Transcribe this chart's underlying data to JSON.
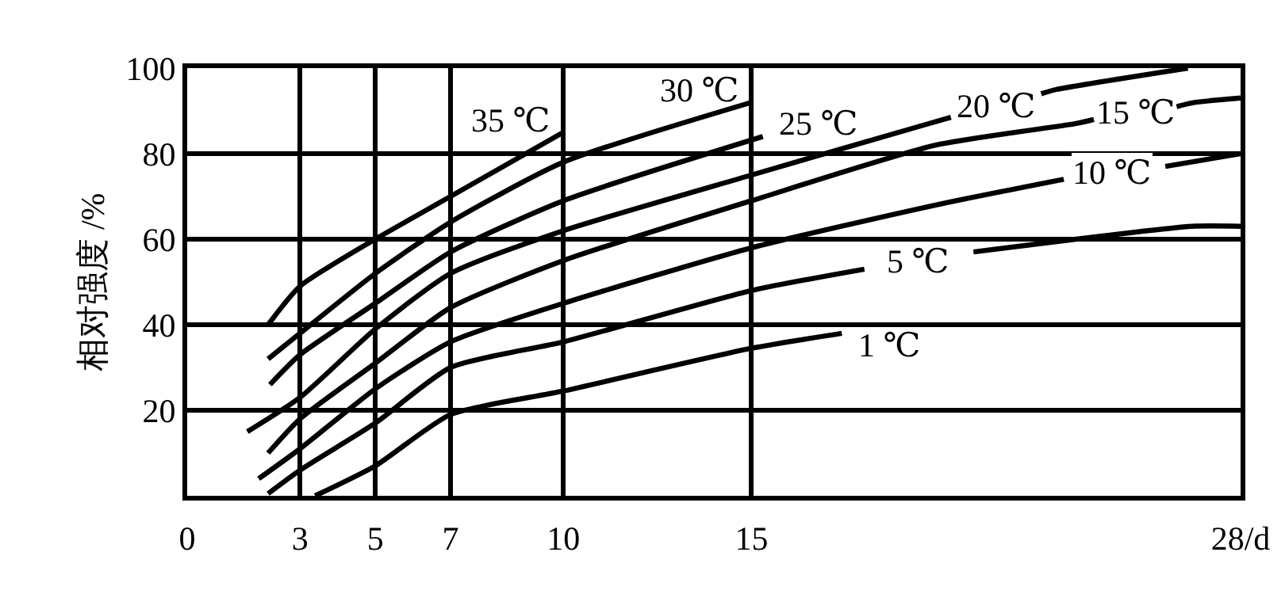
{
  "chart_data": {
    "type": "line",
    "ylabel": "相对强度 /%",
    "xlim": [
      0,
      28
    ],
    "ylim": [
      0,
      100
    ],
    "xticks": [
      0,
      3,
      5,
      7,
      10,
      15,
      {
        "value": 28,
        "label": "28/d"
      }
    ],
    "yticks": [
      20,
      40,
      60,
      80,
      100
    ],
    "grid": true,
    "legend": false,
    "marker": "none",
    "line_style": "solid",
    "series": [
      {
        "name": "35 ℃",
        "color": "#000000",
        "x": [
          2.15,
          3,
          5,
          7,
          10
        ],
        "values": [
          40,
          49,
          60,
          70,
          85
        ]
      },
      {
        "name": "30 ℃",
        "color": "#000000",
        "x": [
          2.15,
          3,
          5,
          7,
          10,
          15
        ],
        "values": [
          32,
          38,
          52,
          64,
          78,
          92
        ]
      },
      {
        "name": "25 ℃",
        "color": "#000000",
        "x": [
          2.2,
          3,
          5,
          7,
          10,
          15.3
        ],
        "values": [
          26,
          33,
          45,
          57,
          69,
          84
        ]
      },
      {
        "name": "20 ℃",
        "color": "#000000",
        "x": [
          1.6,
          3,
          5,
          7,
          10,
          15,
          19.7,
          20.3,
          21.5,
          22.7,
          23.1,
          26.6
        ],
        "values": [
          15,
          23,
          39,
          52,
          62,
          75,
          87,
          88.5,
          null,
          94,
          95,
          100
        ]
      },
      {
        "name": "15 ℃",
        "color": "#000000",
        "x": [
          2.15,
          3,
          5,
          7,
          10,
          15,
          19.9,
          23.6,
          24.1,
          25.2,
          26.3,
          26.8,
          28
        ],
        "values": [
          10,
          18,
          31,
          44,
          55,
          69,
          82,
          87,
          88,
          null,
          91,
          92,
          93
        ]
      },
      {
        "name": "10 ℃",
        "color": "#000000",
        "x": [
          1.9,
          3,
          5,
          7,
          10,
          15,
          19.9,
          23.3,
          24.6,
          26,
          28
        ],
        "values": [
          4,
          11,
          25,
          36,
          45,
          58,
          68,
          74,
          null,
          77,
          80
        ]
      },
      {
        "name": "5 ℃",
        "color": "#000000",
        "x": [
          2.15,
          3,
          5,
          7,
          10,
          15,
          18,
          19.4,
          20.9,
          26.7,
          28
        ],
        "values": [
          0.5,
          6,
          17,
          30,
          36,
          48,
          53,
          null,
          57,
          63,
          63
        ]
      },
      {
        "name": "1 ℃",
        "color": "#000000",
        "x": [
          3.4,
          5,
          7,
          10,
          15,
          17.4
        ],
        "values": [
          0,
          7,
          19,
          24.5,
          34.5,
          38
        ]
      }
    ]
  }
}
